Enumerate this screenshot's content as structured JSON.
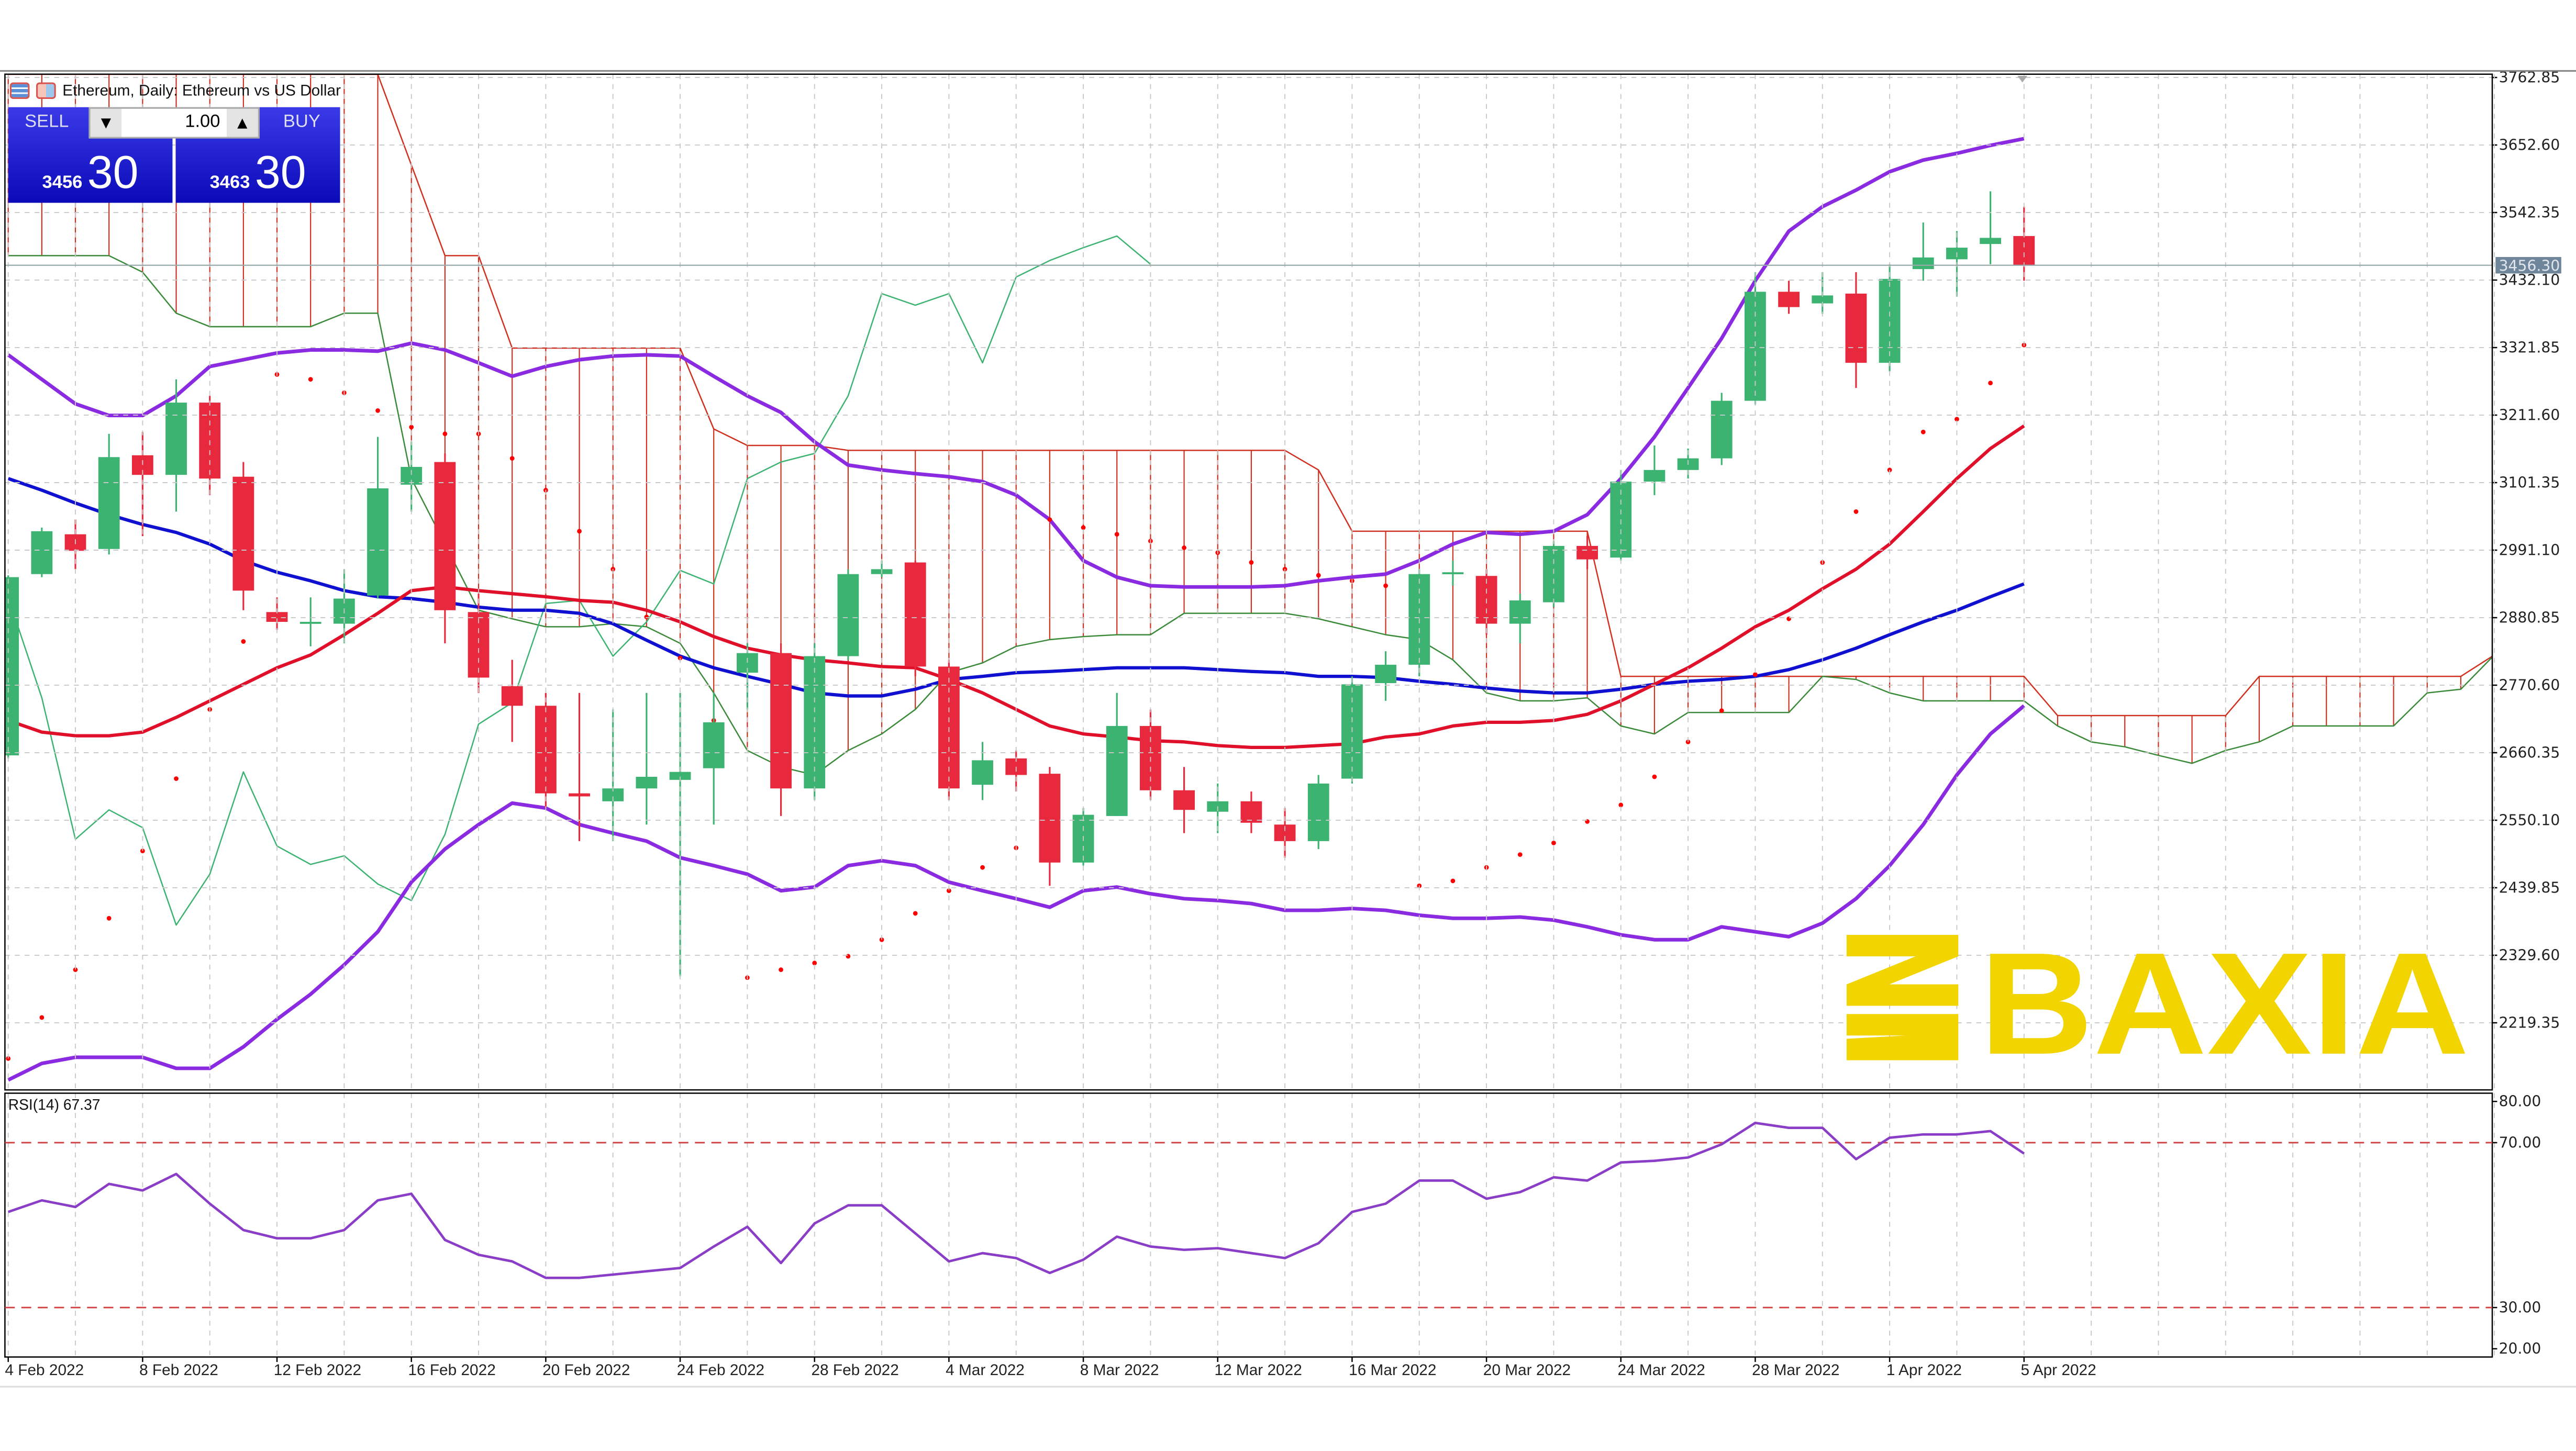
{
  "header": {
    "title": "Ethereum, Daily:  Ethereum vs US Dollar",
    "icons": [
      "one-click-trading-icon",
      "chart-type-icon"
    ]
  },
  "trade_panel": {
    "sell_label": "SELL",
    "buy_label": "BUY",
    "volume": "1.00",
    "sell_price_major": "3456",
    "sell_price_minor": "30",
    "buy_price_major": "3463",
    "buy_price_minor": "30"
  },
  "watermark": {
    "text": "BAXIA",
    "color": "#f2d500"
  },
  "colors": {
    "bull": "#3cb371",
    "bear": "#e8283c",
    "bollinger": "#8a2be2",
    "ma_fast": "#e0102a",
    "ma_slow": "#1010d0",
    "sar": "#ff0000",
    "cloud": "#d03020",
    "chikou": "#3cb371",
    "rsi": "#8a3ec8",
    "rsi_levels": "#d04040"
  },
  "chart_data": [
    {
      "type": "candlestick",
      "title": "Ethereum, Daily:  Ethereum vs US Dollar",
      "dates": [
        "4 Feb 2022",
        "5 Feb 2022",
        "6 Feb 2022",
        "7 Feb 2022",
        "8 Feb 2022",
        "9 Feb 2022",
        "10 Feb 2022",
        "11 Feb 2022",
        "12 Feb 2022",
        "13 Feb 2022",
        "14 Feb 2022",
        "15 Feb 2022",
        "16 Feb 2022",
        "17 Feb 2022",
        "18 Feb 2022",
        "19 Feb 2022",
        "20 Feb 2022",
        "21 Feb 2022",
        "22 Feb 2022",
        "23 Feb 2022",
        "24 Feb 2022",
        "25 Feb 2022",
        "26 Feb 2022",
        "27 Feb 2022",
        "28 Feb 2022",
        "1 Mar 2022",
        "2 Mar 2022",
        "3 Mar 2022",
        "4 Mar 2022",
        "5 Mar 2022",
        "6 Mar 2022",
        "7 Mar 2022",
        "8 Mar 2022",
        "9 Mar 2022",
        "10 Mar 2022",
        "11 Mar 2022",
        "12 Mar 2022",
        "13 Mar 2022",
        "14 Mar 2022",
        "15 Mar 2022",
        "16 Mar 2022",
        "17 Mar 2022",
        "18 Mar 2022",
        "19 Mar 2022",
        "20 Mar 2022",
        "21 Mar 2022",
        "22 Mar 2022",
        "23 Mar 2022",
        "24 Mar 2022",
        "25 Mar 2022",
        "26 Mar 2022",
        "27 Mar 2022",
        "28 Mar 2022",
        "29 Mar 2022",
        "30 Mar 2022",
        "31 Mar 2022",
        "1 Apr 2022",
        "2 Apr 2022",
        "3 Apr 2022",
        "4 Apr 2022",
        "5 Apr 2022"
      ],
      "ohlc": [
        [
          2656,
          2950,
          2651,
          2947
        ],
        [
          2952,
          3028,
          2947,
          3022
        ],
        [
          3017,
          3041,
          2960,
          2990
        ],
        [
          2993,
          3181,
          2984,
          3143
        ],
        [
          3146,
          3184,
          3014,
          3114
        ],
        [
          3114,
          3270,
          3054,
          3232
        ],
        [
          3232,
          3243,
          3081,
          3108
        ],
        [
          3111,
          3135,
          2893,
          2925
        ],
        [
          2890,
          2914,
          2861,
          2874
        ],
        [
          2874,
          2914,
          2834,
          2874
        ],
        [
          2871,
          2960,
          2839,
          2912
        ],
        [
          2917,
          3176,
          2912,
          3092
        ],
        [
          3098,
          3168,
          3054,
          3127
        ],
        [
          3135,
          3149,
          2839,
          2893
        ],
        [
          2890,
          2920,
          2758,
          2783
        ],
        [
          2769,
          2812,
          2678,
          2737
        ],
        [
          2737,
          2758,
          2570,
          2594
        ],
        [
          2594,
          2758,
          2516,
          2589
        ],
        [
          2581,
          2731,
          2516,
          2602
        ],
        [
          2602,
          2758,
          2543,
          2621
        ],
        [
          2616,
          2758,
          2295,
          2629
        ],
        [
          2635,
          2758,
          2543,
          2710
        ],
        [
          2791,
          2839,
          2731,
          2823
        ],
        [
          2823,
          2839,
          2557,
          2602
        ],
        [
          2602,
          2839,
          2583,
          2818
        ],
        [
          2818,
          2960,
          2812,
          2952
        ],
        [
          2952,
          2974,
          2947,
          2960
        ],
        [
          2971,
          2974,
          2785,
          2801
        ],
        [
          2801,
          2812,
          2583,
          2602
        ],
        [
          2608,
          2678,
          2583,
          2648
        ],
        [
          2651,
          2664,
          2597,
          2624
        ],
        [
          2626,
          2637,
          2443,
          2481
        ],
        [
          2481,
          2570,
          2476,
          2559
        ],
        [
          2557,
          2758,
          2557,
          2704
        ],
        [
          2704,
          2731,
          2583,
          2599
        ],
        [
          2599,
          2637,
          2529,
          2567
        ],
        [
          2564,
          2610,
          2529,
          2581
        ],
        [
          2581,
          2597,
          2529,
          2546
        ],
        [
          2543,
          2570,
          2489,
          2516
        ],
        [
          2516,
          2624,
          2503,
          2610
        ],
        [
          2618,
          2785,
          2610,
          2772
        ],
        [
          2774,
          2826,
          2745,
          2804
        ],
        [
          2804,
          2960,
          2785,
          2952
        ],
        [
          2952,
          2974,
          2933,
          2955
        ],
        [
          2949,
          2960,
          2853,
          2871
        ],
        [
          2871,
          2920,
          2839,
          2909
        ],
        [
          2906,
          3006,
          2898,
          2998
        ],
        [
          2998,
          3014,
          2960,
          2976
        ],
        [
          2979,
          3122,
          2974,
          3103
        ],
        [
          3103,
          3162,
          3081,
          3122
        ],
        [
          3122,
          3157,
          3108,
          3141
        ],
        [
          3141,
          3248,
          3130,
          3235
        ],
        [
          3235,
          3445,
          3229,
          3413
        ],
        [
          3413,
          3431,
          3377,
          3388
        ],
        [
          3394,
          3445,
          3377,
          3407
        ],
        [
          3410,
          3445,
          3256,
          3297
        ],
        [
          3297,
          3458,
          3283,
          3434
        ],
        [
          3450,
          3526,
          3431,
          3469
        ],
        [
          3466,
          3512,
          3405,
          3485
        ],
        [
          3491,
          3577,
          3458,
          3501
        ],
        [
          3504,
          3552,
          3431,
          3456
        ]
      ],
      "bollinger_upper": [
        3310,
        3270,
        3230,
        3211,
        3211,
        3243,
        3291,
        3302,
        3313,
        3318,
        3318,
        3316,
        3329,
        3318,
        3297,
        3275,
        3291,
        3302,
        3308,
        3310,
        3308,
        3275,
        3243,
        3216,
        3168,
        3130,
        3122,
        3116,
        3111,
        3103,
        3081,
        3041,
        2974,
        2947,
        2933,
        2931,
        2931,
        2931,
        2933,
        2941,
        2947,
        2952,
        2974,
        3001,
        3020,
        3017,
        3022,
        3049,
        3108,
        3176,
        3256,
        3337,
        3431,
        3512,
        3552,
        3579,
        3609,
        3628,
        3639,
        3652,
        3663
      ],
      "bollinger_lower": [
        2126,
        2153,
        2163,
        2163,
        2163,
        2145,
        2145,
        2180,
        2225,
        2266,
        2314,
        2368,
        2449,
        2503,
        2543,
        2578,
        2570,
        2543,
        2529,
        2516,
        2489,
        2476,
        2462,
        2435,
        2441,
        2476,
        2484,
        2476,
        2449,
        2435,
        2422,
        2408,
        2435,
        2441,
        2430,
        2422,
        2419,
        2414,
        2403,
        2403,
        2406,
        2403,
        2395,
        2390,
        2390,
        2392,
        2387,
        2376,
        2363,
        2355,
        2355,
        2376,
        2368,
        2360,
        2382,
        2422,
        2476,
        2543,
        2624,
        2691,
        2737
      ],
      "ma_fast": [
        2713,
        2694,
        2688,
        2688,
        2694,
        2718,
        2745,
        2772,
        2799,
        2820,
        2853,
        2888,
        2925,
        2931,
        2925,
        2920,
        2915,
        2909,
        2906,
        2893,
        2874,
        2850,
        2831,
        2820,
        2812,
        2807,
        2801,
        2799,
        2780,
        2758,
        2731,
        2704,
        2691,
        2686,
        2680,
        2678,
        2672,
        2669,
        2669,
        2672,
        2675,
        2686,
        2691,
        2704,
        2710,
        2710,
        2713,
        2723,
        2745,
        2772,
        2799,
        2831,
        2866,
        2893,
        2928,
        2960,
        3001,
        3054,
        3108,
        3157,
        3194
      ],
      "ma_slow": [
        3108,
        3089,
        3068,
        3049,
        3033,
        3020,
        3001,
        2974,
        2955,
        2941,
        2925,
        2915,
        2912,
        2906,
        2898,
        2893,
        2893,
        2888,
        2871,
        2844,
        2818,
        2799,
        2785,
        2772,
        2758,
        2753,
        2753,
        2764,
        2780,
        2785,
        2791,
        2793,
        2796,
        2799,
        2799,
        2799,
        2796,
        2793,
        2791,
        2785,
        2785,
        2783,
        2777,
        2772,
        2766,
        2761,
        2758,
        2758,
        2764,
        2772,
        2777,
        2780,
        2785,
        2796,
        2812,
        2831,
        2853,
        2874,
        2893,
        2915,
        2936
      ],
      "parabolic_sar": [
        2161,
        2228,
        2306,
        2390,
        2500,
        2618,
        2731,
        2842,
        3278,
        3270,
        3248,
        3219,
        3192,
        3181,
        3181,
        3141,
        3089,
        3022,
        2960,
        2882,
        2815,
        2713,
        2293,
        2306,
        2317,
        2328,
        2355,
        2398,
        2435,
        2473,
        2505,
        3041,
        3028,
        3017,
        3006,
        2995,
        2987,
        2971,
        2960,
        2950,
        2941,
        2933,
        2443,
        2451,
        2473,
        2494,
        2513,
        2548,
        2575,
        2621,
        2678,
        2729,
        2788,
        2879,
        2971,
        3054,
        3122,
        3184,
        3205,
        3264,
        3326
      ],
      "ichimoku_span_b": [
        3768,
        3768,
        3768,
        3768,
        3768,
        3768,
        3768,
        3768,
        3768,
        3768,
        3768,
        3768,
        3620,
        3472,
        3472,
        3321,
        3321,
        3321,
        3321,
        3321,
        3321,
        3189,
        3162,
        3162,
        3162,
        3154,
        3154,
        3154,
        3154,
        3154,
        3154,
        3154,
        3154,
        3154,
        3154,
        3154,
        3154,
        3154,
        3154,
        3122,
        3022,
        3022,
        3022,
        3022,
        3022,
        3022,
        3022,
        3022,
        2785,
        2785,
        2785,
        2785,
        2785,
        2785,
        2785,
        2785,
        2785,
        2785,
        2785,
        2785,
        2785,
        2721,
        2721,
        2721,
        2721,
        2721,
        2721,
        2785,
        2785,
        2785,
        2785,
        2785,
        2785,
        2785,
        2820
      ],
      "ichimoku_span_a": [
        3472,
        3472,
        3472,
        3472,
        3445,
        3378,
        3356,
        3356,
        3356,
        3356,
        3378,
        3378,
        3108,
        3001,
        2893,
        2879,
        2866,
        2866,
        2871,
        2866,
        2839,
        2758,
        2664,
        2637,
        2624,
        2664,
        2691,
        2731,
        2791,
        2807,
        2834,
        2845,
        2850,
        2853,
        2853,
        2888,
        2888,
        2888,
        2888,
        2879,
        2866,
        2853,
        2845,
        2812,
        2758,
        2745,
        2745,
        2750,
        2704,
        2691,
        2726,
        2726,
        2726,
        2726,
        2785,
        2780,
        2758,
        2745,
        2745,
        2745,
        2745,
        2704,
        2678,
        2670,
        2656,
        2643,
        2664,
        2678,
        2704,
        2704,
        2704,
        2704,
        2758,
        2764,
        2820
      ],
      "chikou_span": [
        2914,
        2750,
        2519,
        2567,
        2538,
        2379,
        2462,
        2629,
        2508,
        2478,
        2492,
        2446,
        2419,
        2527,
        2707,
        2742,
        2904,
        2909,
        2818,
        2874,
        2958,
        2936,
        3108,
        3135,
        3149,
        3243,
        3410,
        3391,
        3410,
        3297,
        3437,
        3464,
        3485,
        3504,
        3458
      ],
      "current_price": 3456.3,
      "current_price_label": "3456.30",
      "y_ticks": [
        "3762.85",
        "3652.60",
        "3542.35",
        "3432.10",
        "3321.85",
        "3211.60",
        "3101.35",
        "2991.10",
        "2880.85",
        "2770.60",
        "2660.35",
        "2550.10",
        "2439.85",
        "2329.60",
        "2219.35"
      ],
      "ylim": [
        2186,
        3763
      ],
      "x_tick_labels": [
        "4 Feb 2022",
        "8 Feb 2022",
        "12 Feb 2022",
        "16 Feb 2022",
        "20 Feb 2022",
        "24 Feb 2022",
        "28 Feb 2022",
        "4 Mar 2022",
        "8 Mar 2022",
        "12 Mar 2022",
        "16 Mar 2022",
        "20 Mar 2022",
        "24 Mar 2022",
        "28 Mar 2022",
        "1 Apr 2022",
        "5 Apr 2022"
      ],
      "grid": true
    },
    {
      "type": "line",
      "label": "RSI(14) 67.37",
      "rsi": [
        53.2,
        56,
        54.4,
        60,
        58.4,
        62.4,
        55.2,
        48.8,
        46.8,
        46.8,
        48.8,
        56,
        57.6,
        46.4,
        42.8,
        41.2,
        37.2,
        37.2,
        38,
        38.8,
        39.6,
        44.8,
        49.6,
        40.8,
        50.4,
        54.8,
        54.8,
        48,
        41.2,
        43.2,
        42,
        38.4,
        41.6,
        47.2,
        44.8,
        44,
        44.4,
        43.2,
        42,
        45.6,
        53.2,
        55.2,
        60.8,
        60.8,
        56.4,
        58,
        61.6,
        60.8,
        65.2,
        65.6,
        66.4,
        69.6,
        74.8,
        73.6,
        73.6,
        66,
        71.2,
        72,
        72,
        72.8,
        67.37
      ],
      "levels": [
        70,
        30
      ],
      "y_ticks": [
        "80.00",
        "70.00",
        "30.00",
        "20.00"
      ],
      "ylim": [
        20,
        80
      ]
    }
  ]
}
